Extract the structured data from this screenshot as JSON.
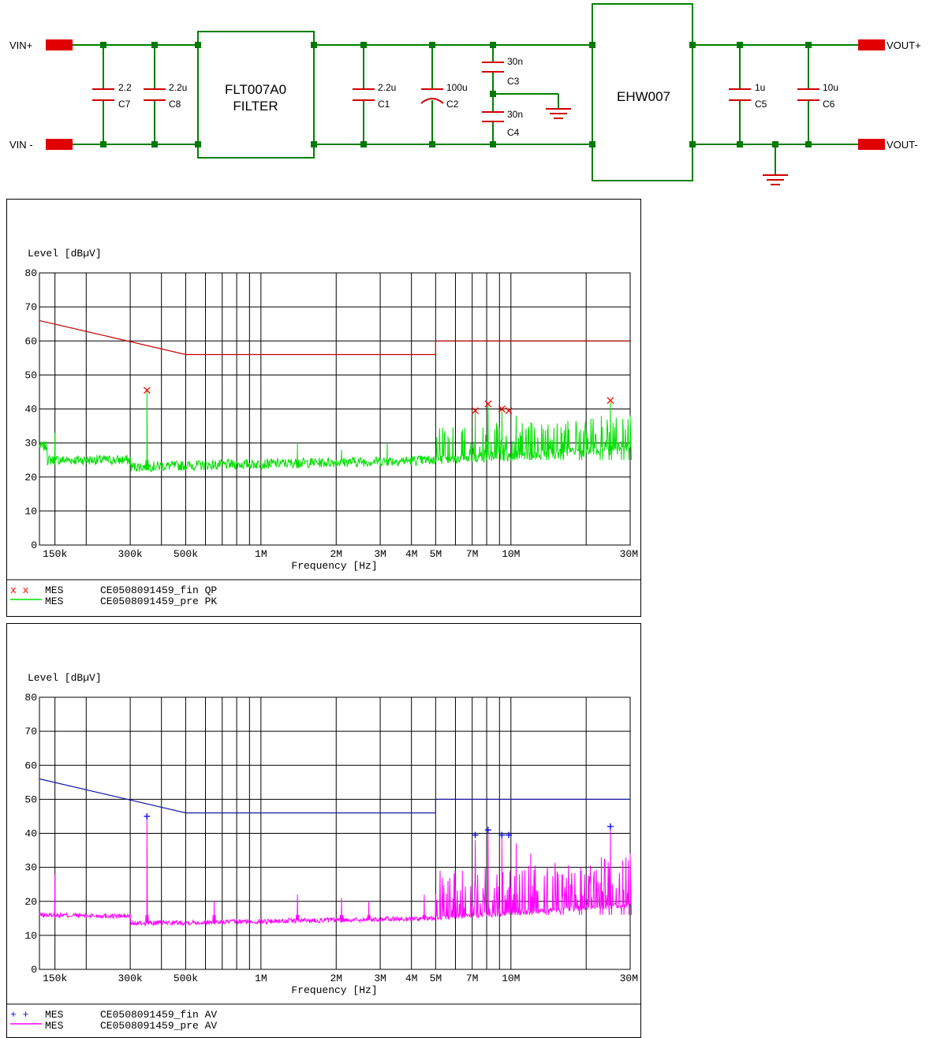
{
  "schematic": {
    "vin_pos": "VIN+",
    "vin_neg": "VIN -",
    "vout_pos": "VOUT+",
    "vout_neg": "VOUT-",
    "filter_name": "FLT007A0",
    "filter_label": "FILTER",
    "module_name": "EHW007",
    "capacitors": [
      {
        "ref": "C7",
        "value": "2.2"
      },
      {
        "ref": "C8",
        "value": "2.2u"
      },
      {
        "ref": "C1",
        "value": "2.2u"
      },
      {
        "ref": "C2",
        "value": "100u"
      },
      {
        "ref": "C3",
        "value": "30n"
      },
      {
        "ref": "C4",
        "value": "30n"
      },
      {
        "ref": "C5",
        "value": "1u"
      },
      {
        "ref": "C6",
        "value": "10u"
      }
    ],
    "colors": {
      "wire": "#008000",
      "node": "#007a00",
      "cap": "#d00000",
      "terminal": "#e00000"
    }
  },
  "chart_data": [
    {
      "type": "line",
      "ylabel": "Level [dBµV]",
      "xlabel": "Frequency [Hz]",
      "xscale": "log",
      "xlim": [
        130000,
        30000000
      ],
      "ylim": [
        0,
        80
      ],
      "yticks": [
        0,
        10,
        20,
        30,
        40,
        50,
        60,
        70,
        80
      ],
      "xticks": [
        {
          "v": 150000,
          "label": "150k"
        },
        {
          "v": 300000,
          "label": "300k"
        },
        {
          "v": 500000,
          "label": "500k"
        },
        {
          "v": 1000000,
          "label": "1M"
        },
        {
          "v": 2000000,
          "label": "2M"
        },
        {
          "v": 3000000,
          "label": "3M"
        },
        {
          "v": 4000000,
          "label": "4M"
        },
        {
          "v": 5000000,
          "label": "5M"
        },
        {
          "v": 7000000,
          "label": "7M"
        },
        {
          "v": 10000000,
          "label": "10M"
        },
        {
          "v": 30000000,
          "label": "30M"
        }
      ],
      "gridlines": [
        150000,
        200000,
        300000,
        400000,
        500000,
        600000,
        700000,
        800000,
        900000,
        1000000,
        2000000,
        3000000,
        4000000,
        5000000,
        6000000,
        7000000,
        8000000,
        9000000,
        10000000,
        20000000,
        30000000
      ],
      "limit_line": {
        "color": "#cc0000",
        "x": [
          130000,
          500000,
          5000000,
          5000000,
          30000000
        ],
        "y": [
          66,
          56,
          56,
          60,
          60
        ]
      },
      "markers": {
        "symbol": "x",
        "color": "#ff0000",
        "x": [
          350000,
          7200000,
          8100000,
          9200000,
          9800000,
          25000000
        ],
        "y": [
          45.5,
          39.5,
          41.5,
          40,
          39.5,
          42.5
        ]
      },
      "trace": {
        "color": "#00e000",
        "peak_x": [
          150000,
          350000,
          1400000,
          2100000,
          3200000,
          5600000,
          6400000,
          7200000,
          8100000,
          9200000,
          10500000,
          12000000,
          14000000,
          16000000,
          19000000,
          23000000,
          25000000,
          28000000,
          30000000
        ],
        "peak_y": [
          33,
          46,
          30,
          28,
          30,
          32,
          34,
          40,
          41,
          40,
          38,
          36,
          34,
          33,
          34,
          38,
          42,
          37,
          38
        ]
      },
      "legend": [
        {
          "symbol": "x x",
          "name": "MES",
          "text": "CE0508091459_fin QP"
        },
        {
          "symbol": "",
          "name": "MES",
          "text": "CE0508091459_pre PK"
        }
      ]
    },
    {
      "type": "line",
      "ylabel": "Level [dBµV]",
      "xlabel": "Frequency [Hz]",
      "xscale": "log",
      "xlim": [
        130000,
        30000000
      ],
      "ylim": [
        0,
        80
      ],
      "yticks": [
        0,
        10,
        20,
        30,
        40,
        50,
        60,
        70,
        80
      ],
      "xticks": [
        {
          "v": 150000,
          "label": "150k"
        },
        {
          "v": 300000,
          "label": "300k"
        },
        {
          "v": 500000,
          "label": "500k"
        },
        {
          "v": 1000000,
          "label": "1M"
        },
        {
          "v": 2000000,
          "label": "2M"
        },
        {
          "v": 3000000,
          "label": "3M"
        },
        {
          "v": 4000000,
          "label": "4M"
        },
        {
          "v": 5000000,
          "label": "5M"
        },
        {
          "v": 7000000,
          "label": "7M"
        },
        {
          "v": 10000000,
          "label": "10M"
        },
        {
          "v": 30000000,
          "label": "30M"
        }
      ],
      "gridlines": [
        150000,
        200000,
        300000,
        400000,
        500000,
        600000,
        700000,
        800000,
        900000,
        1000000,
        2000000,
        3000000,
        4000000,
        5000000,
        6000000,
        7000000,
        8000000,
        9000000,
        10000000,
        20000000,
        30000000
      ],
      "limit_line": {
        "color": "#1a1aaa",
        "x": [
          130000,
          500000,
          5000000,
          5000000,
          30000000
        ],
        "y": [
          56,
          46,
          46,
          50,
          50
        ]
      },
      "markers": {
        "symbol": "+",
        "color": "#0000ff",
        "x": [
          350000,
          7200000,
          8100000,
          9200000,
          9800000,
          25000000
        ],
        "y": [
          45,
          39.5,
          41,
          39.5,
          39.5,
          42
        ]
      },
      "trace": {
        "color": "#ff00ff",
        "peak_x": [
          150000,
          350000,
          650000,
          1400000,
          2100000,
          2700000,
          4500000,
          5600000,
          6400000,
          7200000,
          8100000,
          9200000,
          10500000,
          12000000,
          14000000,
          16000000,
          19000000,
          23000000,
          25000000,
          28000000,
          30000000
        ],
        "peak_y": [
          28,
          45,
          20,
          22,
          21,
          20,
          22,
          26,
          29,
          38,
          41,
          39,
          37,
          34,
          30,
          28,
          30,
          33,
          42,
          32,
          34
        ]
      },
      "legend": [
        {
          "symbol": "+ +",
          "name": "MES",
          "text": "CE0508091459_fin AV"
        },
        {
          "symbol": "",
          "name": "MES",
          "text": "CE0508091459_pre AV"
        }
      ]
    }
  ]
}
